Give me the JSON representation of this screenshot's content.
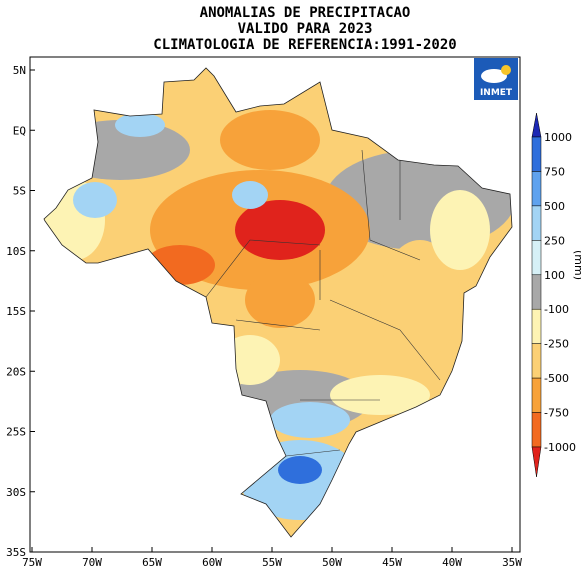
{
  "title": [
    "ANOMALIAS DE PRECIPITACAO",
    "VALIDO PARA 2023",
    "CLIMATOLOGIA DE REFERENCIA:1991-2020"
  ],
  "map": {
    "lat_ticks": [
      "5N",
      "EQ",
      "5S",
      "10S",
      "15S",
      "20S",
      "25S",
      "30S",
      "35S"
    ],
    "lon_ticks": [
      "75W",
      "70W",
      "65W",
      "60W",
      "55W",
      "50W",
      "45W",
      "40W",
      "35W"
    ]
  },
  "legend": {
    "unit": "(mm)",
    "levels": [
      1000,
      750,
      500,
      250,
      100,
      -100,
      -250,
      -500,
      -750,
      -1000
    ],
    "colors": [
      "#1c28b4",
      "#2f6fdc",
      "#5fa2ee",
      "#a3d4f4",
      "#d6f0f6",
      "#a8a8a8",
      "#fdf3b4",
      "#fbd075",
      "#f7a23a",
      "#f26a20",
      "#e0231c"
    ]
  },
  "logo": "INMET"
}
